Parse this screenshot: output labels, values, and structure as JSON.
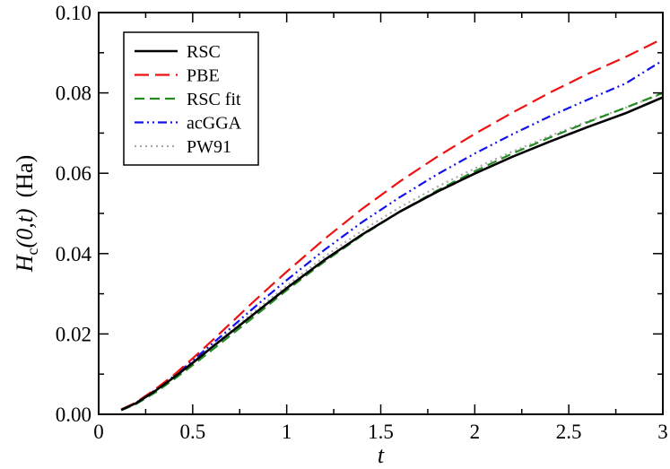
{
  "chart_data": {
    "type": "line",
    "title": "",
    "xlabel": "t",
    "ylabel": {
      "main": "H",
      "sub": "c",
      "args": "(0,t)",
      "unit": "(Ha)"
    },
    "xlim": [
      0,
      3
    ],
    "ylim": [
      0,
      0.1
    ],
    "xticks": [
      "0",
      "0.5",
      "1",
      "1.5",
      "2",
      "2.5",
      "3"
    ],
    "yticks": [
      "0.00",
      "0.02",
      "0.04",
      "0.06",
      "0.08",
      "0.10"
    ],
    "legend_position": "top-left",
    "grid": false,
    "x": [
      0.12,
      0.2,
      0.3,
      0.4,
      0.5,
      0.6,
      0.7,
      0.8,
      0.9,
      1.0,
      1.2,
      1.4,
      1.6,
      1.8,
      2.0,
      2.2,
      2.4,
      2.6,
      2.8,
      3.0
    ],
    "series": [
      {
        "name": "RSC",
        "color": "#000000",
        "dash": "",
        "values": [
          0.0011,
          0.0028,
          0.0058,
          0.0092,
          0.0128,
          0.0166,
          0.0203,
          0.024,
          0.0277,
          0.0314,
          0.0384,
          0.0447,
          0.0504,
          0.0554,
          0.0599,
          0.0641,
          0.0679,
          0.0715,
          0.0749,
          0.0789
        ]
      },
      {
        "name": "PBE",
        "color": "#ee1111",
        "dash": "16,7",
        "values": [
          0.0012,
          0.003,
          0.0062,
          0.0098,
          0.0139,
          0.0182,
          0.0226,
          0.027,
          0.0313,
          0.0355,
          0.0436,
          0.0511,
          0.0579,
          0.0641,
          0.0698,
          0.0751,
          0.0801,
          0.0847,
          0.0889,
          0.0935
        ]
      },
      {
        "name": "RSC fit",
        "color": "#228b22",
        "dash": "11,6",
        "values": [
          0.001,
          0.0026,
          0.0054,
          0.0087,
          0.0122,
          0.0159,
          0.0196,
          0.0233,
          0.0271,
          0.0309,
          0.038,
          0.0445,
          0.0504,
          0.0557,
          0.0605,
          0.0649,
          0.0689,
          0.0727,
          0.0763,
          0.08
        ]
      },
      {
        "name": "acGGA",
        "color": "#1111ee",
        "dash": "10,4,2,4,2,4",
        "values": [
          0.0011,
          0.0029,
          0.006,
          0.0095,
          0.0134,
          0.0174,
          0.0214,
          0.0255,
          0.0295,
          0.0334,
          0.0409,
          0.0478,
          0.054,
          0.0597,
          0.0649,
          0.0697,
          0.0742,
          0.0783,
          0.0823,
          0.0881
        ]
      },
      {
        "name": "PW91",
        "color": "#a9a9a9",
        "dash": "2,4",
        "values": [
          0.0011,
          0.0028,
          0.0058,
          0.0093,
          0.013,
          0.0168,
          0.0207,
          0.0245,
          0.0283,
          0.032,
          0.0392,
          0.0457,
          0.0515,
          0.0566,
          0.0612,
          0.0654,
          0.0693,
          0.0729,
          0.0763,
          0.0798
        ]
      }
    ]
  }
}
